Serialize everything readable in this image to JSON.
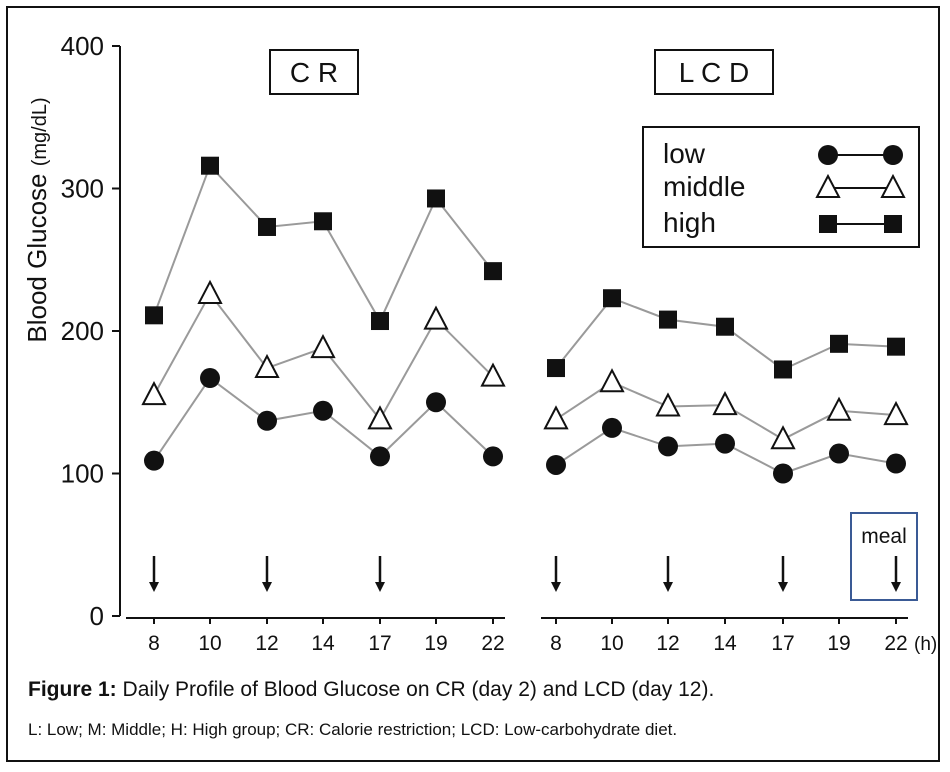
{
  "chart_data": {
    "type": "line",
    "ylabel": "Blood Glucose",
    "ylabel_unit": "(mg/dL)",
    "ylim": [
      0,
      400
    ],
    "yticks": [
      0,
      100,
      200,
      300,
      400
    ],
    "x_unit": "(h)",
    "panels": [
      {
        "title": "C R",
        "x": [
          "8",
          "10",
          "12",
          "14",
          "17",
          "19",
          "22"
        ],
        "series": [
          {
            "name": "high",
            "marker": "square",
            "values": [
              211,
              316,
              273,
              277,
              207,
              293,
              242
            ]
          },
          {
            "name": "middle",
            "marker": "triangle",
            "values": [
              155,
              226,
              174,
              188,
              138,
              208,
              168
            ]
          },
          {
            "name": "low",
            "marker": "circle",
            "values": [
              109,
              167,
              137,
              144,
              112,
              150,
              112
            ]
          }
        ],
        "meals_at": [
          "8",
          "12",
          "17"
        ]
      },
      {
        "title": "L C D",
        "x": [
          "8",
          "10",
          "12",
          "14",
          "17",
          "19",
          "22"
        ],
        "series": [
          {
            "name": "high",
            "marker": "square",
            "values": [
              174,
              223,
              208,
              203,
              173,
              191,
              189
            ]
          },
          {
            "name": "middle",
            "marker": "triangle",
            "values": [
              138,
              164,
              147,
              148,
              124,
              144,
              141
            ]
          },
          {
            "name": "low",
            "marker": "circle",
            "values": [
              106,
              132,
              119,
              121,
              100,
              114,
              107
            ]
          }
        ],
        "meals_at": [
          "8",
          "12",
          "17",
          "22"
        ]
      }
    ],
    "legend": {
      "position": "top-right",
      "entries": [
        {
          "label": "low",
          "marker": "circle"
        },
        {
          "label": "middle",
          "marker": "triangle"
        },
        {
          "label": "high",
          "marker": "square"
        }
      ]
    },
    "meal_label": "meal",
    "colors": {
      "line": "#9a9a9a",
      "marker": "#111111",
      "meal_box": "#3a5a95"
    }
  },
  "caption": {
    "title_bold": "Figure 1:",
    "title_rest": " Daily Profile of Blood Glucose on CR (day 2) and LCD (day 12).",
    "note": "L: Low; M: Middle; H: High group; CR: Calorie restriction; LCD: Low-carbohydrate diet."
  }
}
